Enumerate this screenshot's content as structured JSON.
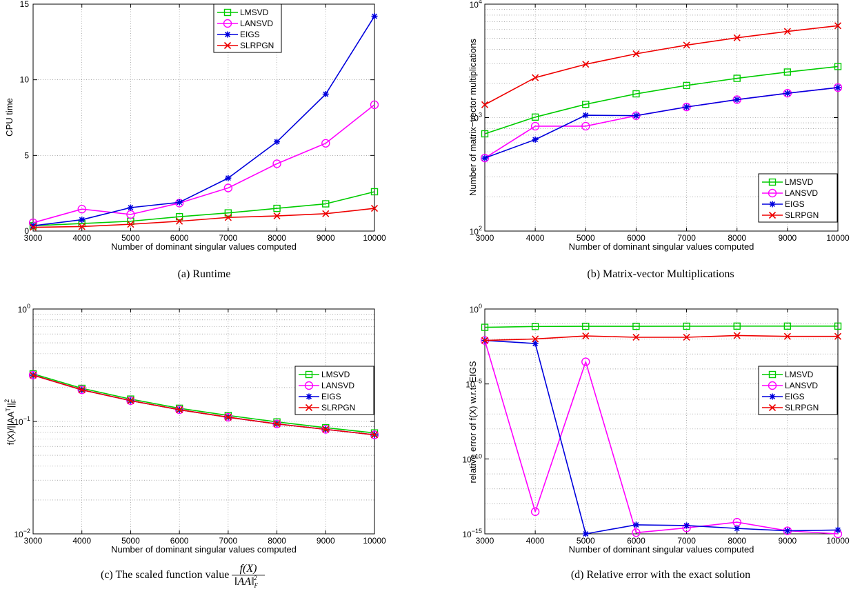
{
  "chart_data": [
    {
      "id": "a",
      "type": "line",
      "caption": "(a)  Runtime",
      "xlabel": "Number of dominant singular values computed",
      "ylabel": "CPU time",
      "x": [
        3000,
        4000,
        5000,
        6000,
        7000,
        8000,
        9000,
        10000
      ],
      "xlim": [
        3000,
        10000
      ],
      "ylim": [
        0,
        15
      ],
      "yscale": "linear",
      "yticks": [
        0,
        5,
        10,
        15
      ],
      "ytick_labels": [
        "0",
        "5",
        "10",
        "15"
      ],
      "grid": true,
      "legend_position": "top-center",
      "series": [
        {
          "name": "LMSVD",
          "color": "#00cc00",
          "marker": "square",
          "values": [
            0.35,
            0.5,
            0.65,
            0.95,
            1.2,
            1.5,
            1.8,
            2.6
          ]
        },
        {
          "name": "LANSVD",
          "color": "#ff00ff",
          "marker": "circle",
          "values": [
            0.55,
            1.45,
            1.1,
            1.85,
            2.85,
            4.45,
            5.8,
            8.35
          ]
        },
        {
          "name": "EIGS",
          "color": "#0000dd",
          "marker": "star",
          "values": [
            0.35,
            0.75,
            1.55,
            1.9,
            3.5,
            5.9,
            9.05,
            14.2
          ]
        },
        {
          "name": "SLRPGN",
          "color": "#ee0000",
          "marker": "x",
          "values": [
            0.25,
            0.3,
            0.45,
            0.65,
            0.9,
            1.0,
            1.15,
            1.5
          ]
        }
      ]
    },
    {
      "id": "b",
      "type": "line",
      "caption": "(b)  Matrix-vector Multiplications",
      "xlabel": "Number of dominant singular values computed",
      "ylabel": "Number of matrix−vector multiplications",
      "x": [
        3000,
        4000,
        5000,
        6000,
        7000,
        8000,
        9000,
        10000
      ],
      "xlim": [
        3000,
        10000
      ],
      "ylim_exp": [
        2,
        4
      ],
      "yscale": "log",
      "yticks_exp": [
        2,
        3,
        4
      ],
      "ytick_labels": [
        "10",
        "10",
        "10"
      ],
      "ytick_sups": [
        "2",
        "3",
        "4"
      ],
      "grid": true,
      "legend_position": "bottom-right",
      "series": [
        {
          "name": "LMSVD",
          "color": "#00cc00",
          "marker": "square",
          "values": [
            720,
            1010,
            1310,
            1620,
            1920,
            2220,
            2520,
            2820
          ]
        },
        {
          "name": "LANSVD",
          "color": "#ff00ff",
          "marker": "circle",
          "values": [
            440,
            840,
            840,
            1040,
            1240,
            1440,
            1640,
            1840
          ]
        },
        {
          "name": "EIGS",
          "color": "#0000dd",
          "marker": "star",
          "values": [
            440,
            640,
            1050,
            1040,
            1240,
            1440,
            1640,
            1840
          ]
        },
        {
          "name": "SLRPGN",
          "color": "#ee0000",
          "marker": "x",
          "values": [
            1300,
            2250,
            2950,
            3650,
            4350,
            5050,
            5750,
            6450
          ]
        }
      ]
    },
    {
      "id": "c",
      "type": "line",
      "caption": "(c)  The scaled function value",
      "caption_math_num": "f(X)",
      "caption_math_den": "‖AA‖",
      "caption_math_sub": "F",
      "caption_math_sup": "2",
      "xlabel": "Number of dominant singular values computed",
      "ylabel": "f(X)/||AA",
      "ylabel_sup": "T",
      "ylabel_tail": "||",
      "ylabel_tail_sub": "F",
      "ylabel_tail_sup": "2",
      "x": [
        3000,
        4000,
        5000,
        6000,
        7000,
        8000,
        9000,
        10000
      ],
      "xlim": [
        3000,
        10000
      ],
      "ylim_exp": [
        -2,
        0
      ],
      "yscale": "log",
      "yticks_exp": [
        -2,
        -1,
        0
      ],
      "ytick_labels": [
        "10",
        "10",
        "10"
      ],
      "ytick_sups": [
        "−2",
        "−1",
        "0"
      ],
      "grid": true,
      "legend_position": "middle-right",
      "series": [
        {
          "name": "LMSVD",
          "color": "#00cc00",
          "marker": "square",
          "values": [
            0.265,
            0.197,
            0.158,
            0.131,
            0.113,
            0.099,
            0.088,
            0.079
          ]
        },
        {
          "name": "LANSVD",
          "color": "#ff00ff",
          "marker": "circle",
          "values": [
            0.258,
            0.191,
            0.153,
            0.127,
            0.109,
            0.095,
            0.085,
            0.076
          ]
        },
        {
          "name": "EIGS",
          "color": "#0000dd",
          "marker": "star",
          "values": [
            0.258,
            0.191,
            0.153,
            0.127,
            0.109,
            0.095,
            0.085,
            0.076
          ]
        },
        {
          "name": "SLRPGN",
          "color": "#ee0000",
          "marker": "x",
          "values": [
            0.258,
            0.191,
            0.153,
            0.127,
            0.109,
            0.095,
            0.085,
            0.076
          ]
        }
      ]
    },
    {
      "id": "d",
      "type": "line",
      "caption": "(d)  Relative error with the exact solution",
      "xlabel": "Number of dominant singular values computed",
      "ylabel": "relative error of f(X) w.r.t. EIGS",
      "x": [
        3000,
        4000,
        5000,
        6000,
        7000,
        8000,
        9000,
        10000
      ],
      "xlim": [
        3000,
        10000
      ],
      "ylim_exp": [
        -15,
        0
      ],
      "yscale": "log",
      "yticks_exp": [
        -15,
        -10,
        -5,
        0
      ],
      "ytick_labels": [
        "10",
        "10",
        "10",
        "10"
      ],
      "ytick_sups": [
        "−15",
        "−10",
        "−5",
        "0"
      ],
      "grid": true,
      "legend_position": "middle-right",
      "series": [
        {
          "name": "LMSVD",
          "color": "#00cc00",
          "marker": "square",
          "values": [
            0.06,
            0.068,
            0.07,
            0.07,
            0.071,
            0.072,
            0.072,
            0.072
          ]
        },
        {
          "name": "LANSVD",
          "color": "#ff00ff",
          "marker": "circle",
          "values": [
            0.008,
            3e-14,
            0.0003,
            1.2e-15,
            2.5e-15,
            6e-15,
            1.6e-15,
            1e-15
          ]
        },
        {
          "name": "EIGS",
          "color": "#0000dd",
          "marker": "star",
          "values": [
            0.008,
            0.005,
            1e-15,
            4e-15,
            3.6e-15,
            2.3e-15,
            1.6e-15,
            1.8e-15
          ]
        },
        {
          "name": "SLRPGN",
          "color": "#ee0000",
          "marker": "x",
          "values": [
            0.008,
            0.01,
            0.016,
            0.013,
            0.013,
            0.017,
            0.015,
            0.015
          ]
        }
      ]
    }
  ]
}
